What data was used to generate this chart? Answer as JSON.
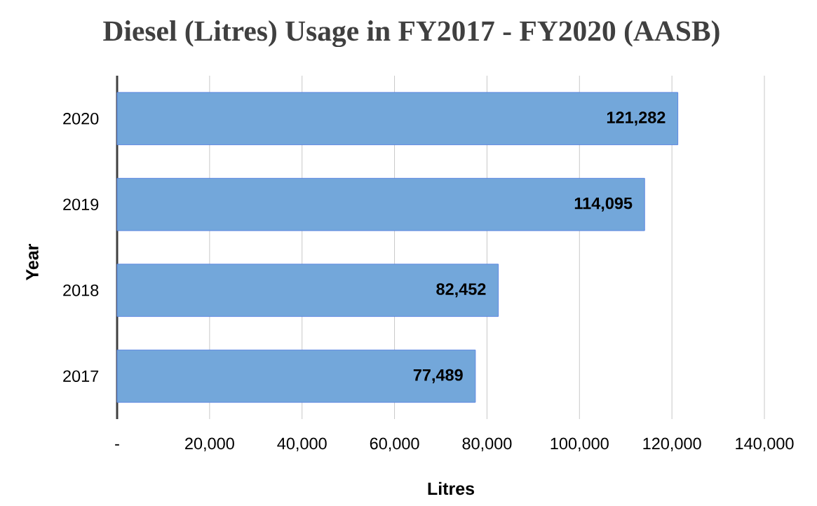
{
  "chart_data": {
    "type": "bar",
    "orientation": "horizontal",
    "title": "Diesel (Litres) Usage in FY2017 - FY2020 (AASB)",
    "xlabel": "Litres",
    "ylabel": "Year",
    "categories": [
      "2020",
      "2019",
      "2018",
      "2017"
    ],
    "values": [
      121282,
      114095,
      82452,
      77489
    ],
    "value_labels": [
      "121,282",
      "114,095",
      "82,452",
      "77,489"
    ],
    "color": "#73a7da",
    "xlim": [
      0,
      140000
    ],
    "xticks": [
      {
        "value": 0,
        "label": "-"
      },
      {
        "value": 20000,
        "label": "20,000"
      },
      {
        "value": 40000,
        "label": "40,000"
      },
      {
        "value": 60000,
        "label": "60,000"
      },
      {
        "value": 80000,
        "label": "80,000"
      },
      {
        "value": 100000,
        "label": "100,000"
      },
      {
        "value": 120000,
        "label": "120,000"
      },
      {
        "value": 140000,
        "label": "140,000"
      }
    ],
    "grid": "x"
  }
}
